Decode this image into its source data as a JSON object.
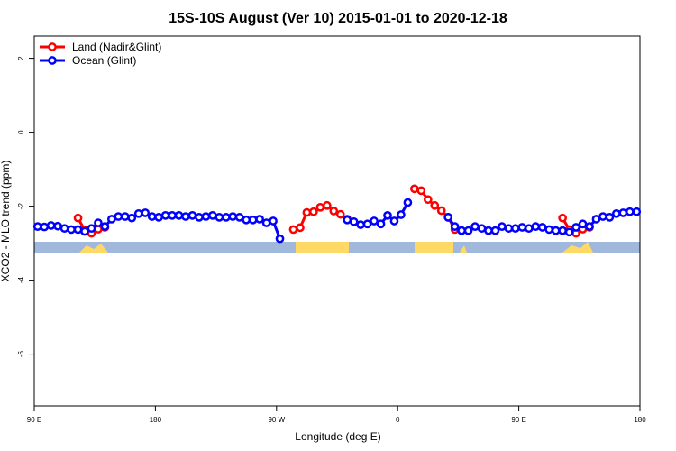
{
  "chart_data": {
    "type": "line",
    "title": "15S-10S August (Ver 10)   2015-01-01 to 2020-12-18",
    "x_label": "Longitude (deg E)",
    "y_label": "XCO2 - MLO trend (ppm)",
    "x": [
      92.5,
      97.5,
      102.5,
      107.5,
      112.5,
      117.5,
      122.5,
      127.5,
      132.5,
      137.5,
      142.5,
      147.5,
      152.5,
      157.5,
      162.5,
      167.5,
      172.5,
      177.5,
      182.5,
      187.5,
      192.5,
      197.5,
      202.5,
      207.5,
      212.5,
      217.5,
      222.5,
      227.5,
      232.5,
      237.5,
      242.5,
      247.5,
      252.5,
      257.5,
      262.5,
      267.5,
      272.5,
      277.5,
      282.5,
      287.5,
      292.5,
      297.5,
      302.5,
      307.5,
      312.5,
      317.5,
      322.5,
      327.5,
      332.5,
      337.5,
      342.5,
      347.5,
      352.5,
      357.5,
      362.5,
      367.5,
      372.5,
      377.5,
      382.5,
      387.5,
      392.5,
      397.5,
      402.5,
      407.5,
      412.5,
      417.5,
      422.5,
      427.5,
      432.5,
      437.5,
      442.5,
      447.5,
      452.5,
      457.5,
      462.5,
      467.5,
      472.5,
      477.5,
      482.5,
      487.5,
      492.5,
      497.5,
      502.5,
      507.5,
      512.5,
      517.5,
      522.5,
      527.5,
      532.5,
      537.5
    ],
    "series": [
      {
        "name": "Land (Nadir&Glint)",
        "color": "#ff0000",
        "values": [
          null,
          null,
          null,
          null,
          null,
          null,
          -2.32,
          -2.65,
          -2.73,
          -2.62,
          -2.57,
          null,
          null,
          null,
          null,
          null,
          null,
          null,
          null,
          null,
          null,
          null,
          null,
          null,
          null,
          null,
          null,
          null,
          null,
          null,
          null,
          null,
          null,
          null,
          null,
          null,
          null,
          null,
          -2.63,
          -2.58,
          -2.17,
          -2.15,
          -2.03,
          -1.98,
          -2.13,
          -2.22,
          -2.35,
          null,
          null,
          null,
          null,
          null,
          null,
          null,
          null,
          null,
          -1.53,
          -1.58,
          -1.82,
          -1.98,
          -2.12,
          -2.3,
          -2.63,
          -2.66,
          null,
          null,
          null,
          null,
          null,
          null,
          null,
          null,
          null,
          null,
          null,
          null,
          null,
          null,
          -2.32,
          -2.63,
          -2.73,
          -2.62,
          -2.57,
          null,
          null,
          null,
          null,
          null,
          null,
          null
        ]
      },
      {
        "name": "Ocean (Glint)",
        "color": "#0000ff",
        "values": [
          -2.55,
          -2.56,
          -2.52,
          -2.54,
          -2.6,
          -2.63,
          -2.63,
          -2.68,
          -2.6,
          -2.45,
          -2.55,
          -2.35,
          -2.28,
          -2.28,
          -2.32,
          -2.2,
          -2.18,
          -2.28,
          -2.3,
          -2.25,
          -2.25,
          -2.25,
          -2.28,
          -2.25,
          -2.3,
          -2.28,
          -2.25,
          -2.3,
          -2.3,
          -2.28,
          -2.3,
          -2.37,
          -2.37,
          -2.35,
          -2.45,
          -2.4,
          -2.88,
          null,
          null,
          null,
          null,
          null,
          null,
          null,
          null,
          null,
          -2.37,
          -2.42,
          -2.5,
          -2.48,
          -2.4,
          -2.48,
          -2.25,
          -2.4,
          -2.23,
          -1.9,
          null,
          null,
          null,
          null,
          null,
          -2.3,
          -2.55,
          -2.66,
          -2.66,
          -2.55,
          -2.6,
          -2.66,
          -2.66,
          -2.55,
          -2.6,
          -2.6,
          -2.57,
          -2.6,
          -2.55,
          -2.57,
          -2.63,
          -2.66,
          -2.66,
          -2.7,
          -2.57,
          -2.48,
          -2.55,
          -2.35,
          -2.28,
          -2.3,
          -2.2,
          -2.18,
          -2.15,
          -2.15
        ]
      }
    ],
    "xlim": [
      90,
      540
    ],
    "xticks": [
      {
        "value": 90,
        "label": "90 E"
      },
      180,
      {
        "value": 270,
        "label": "90 W"
      },
      {
        "value": 360,
        "label": "0"
      },
      {
        "value": 450,
        "label": "90 E"
      },
      {
        "value": 540,
        "label": "180"
      }
    ],
    "ylim": [
      -7.4,
      2.6
    ],
    "yticks": [
      -6,
      -4,
      -2,
      0,
      2
    ],
    "legend": "top-left"
  }
}
